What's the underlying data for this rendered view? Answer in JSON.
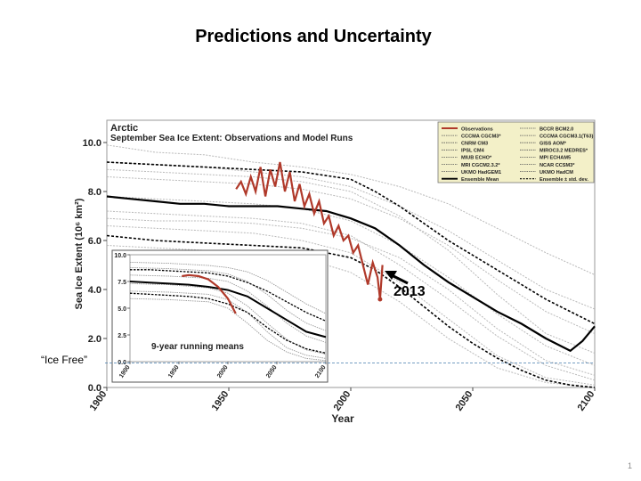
{
  "slide": {
    "title": "Predictions and Uncertainty",
    "ice_free_label": "“Ice Free”",
    "page_number": "1"
  },
  "chart_data": {
    "type": "line",
    "title": "Arctic",
    "subtitle": "September Sea Ice Extent: Observations and Model Runs",
    "xlabel": "Year",
    "ylabel": "Sea Ice Extent (10⁶ km²)",
    "xlim": [
      1900,
      2100
    ],
    "ylim": [
      0,
      10
    ],
    "x_ticks": [
      "1900",
      "1950",
      "2000",
      "2050",
      "2100"
    ],
    "y_ticks": [
      "0.0",
      "2.0",
      "4.0",
      "6.0",
      "8.0",
      "10.0"
    ],
    "legend_position": "top-right",
    "legend": [
      {
        "label": "Observations",
        "style": "observations"
      },
      {
        "label": "BCCR BCM2.0",
        "style": "model"
      },
      {
        "label": "CCCMA CGCM3*",
        "style": "model"
      },
      {
        "label": "CCCMA CGCM3.1(T63)",
        "style": "model"
      },
      {
        "label": "CNRM CM3",
        "style": "model"
      },
      {
        "label": "GISS AOM*",
        "style": "model"
      },
      {
        "label": "IPSL CM4",
        "style": "model"
      },
      {
        "label": "MIROC3.2 MEDRES*",
        "style": "model"
      },
      {
        "label": "MIUB ECHO*",
        "style": "model"
      },
      {
        "label": "MPI ECHAM5",
        "style": "model"
      },
      {
        "label": "MRI CGCM2.3.2*",
        "style": "model"
      },
      {
        "label": "NCAR CCSM3*",
        "style": "model"
      },
      {
        "label": "UKMO HadGEM1",
        "style": "model"
      },
      {
        "label": "UKMO HadCM",
        "style": "model"
      },
      {
        "label": "Ensemble Mean",
        "style": "mean"
      },
      {
        "label": "Ensemble ± std. dev.",
        "style": "std"
      }
    ],
    "annotation": "2013",
    "ice_free_level": 1.0,
    "ensemble_mean": {
      "x": [
        1900,
        1910,
        1920,
        1930,
        1940,
        1950,
        1960,
        1970,
        1980,
        1990,
        2000,
        2010,
        2020,
        2030,
        2040,
        2050,
        2060,
        2070,
        2080,
        2090,
        2095,
        2100
      ],
      "y": [
        7.8,
        7.7,
        7.6,
        7.5,
        7.5,
        7.4,
        7.4,
        7.4,
        7.3,
        7.2,
        6.9,
        6.5,
        5.8,
        5.0,
        4.3,
        3.7,
        3.1,
        2.6,
        2.0,
        1.5,
        1.9,
        2.5
      ]
    },
    "ensemble_upper": {
      "x": [
        1900,
        1920,
        1940,
        1960,
        1980,
        2000,
        2010,
        2020,
        2030,
        2040,
        2050,
        2060,
        2070,
        2080,
        2090,
        2100
      ],
      "y": [
        9.2,
        9.1,
        9.0,
        8.9,
        8.8,
        8.5,
        8.0,
        7.4,
        6.7,
        6.0,
        5.4,
        4.8,
        4.2,
        3.6,
        3.1,
        2.6
      ]
    },
    "ensemble_lower": {
      "x": [
        1900,
        1920,
        1940,
        1960,
        1980,
        2000,
        2010,
        2020,
        2030,
        2040,
        2050,
        2060,
        2070,
        2080,
        2090,
        2100
      ],
      "y": [
        6.2,
        6.0,
        5.9,
        5.8,
        5.7,
        5.3,
        4.8,
        4.1,
        3.3,
        2.5,
        1.8,
        1.2,
        0.7,
        0.3,
        0.1,
        0.0
      ]
    },
    "observations": {
      "x": [
        1953,
        1955,
        1957,
        1959,
        1961,
        1963,
        1965,
        1967,
        1969,
        1971,
        1973,
        1975,
        1977,
        1979,
        1981,
        1983,
        1985,
        1987,
        1989,
        1991,
        1993,
        1995,
        1997,
        1999,
        2001,
        2003,
        2005,
        2007,
        2009,
        2011,
        2012,
        2013
      ],
      "y": [
        8.1,
        8.4,
        7.9,
        8.6,
        8.0,
        9.0,
        7.8,
        8.9,
        8.2,
        9.2,
        8.0,
        8.8,
        7.6,
        8.3,
        7.4,
        7.9,
        7.1,
        7.6,
        6.7,
        7.0,
        6.2,
        6.6,
        6.0,
        6.2,
        5.5,
        5.8,
        5.0,
        4.2,
        5.1,
        4.5,
        3.6,
        5.0
      ]
    },
    "model_runs": [
      {
        "x": [
          1900,
          1920,
          1940,
          1960,
          1980,
          2000,
          2020,
          2040,
          2060,
          2080,
          2100
        ],
        "y": [
          9.9,
          9.6,
          9.5,
          9.2,
          9.0,
          8.7,
          8.2,
          7.5,
          6.5,
          5.5,
          4.6
        ]
      },
      {
        "x": [
          1900,
          1920,
          1940,
          1960,
          1980,
          2000,
          2020,
          2040,
          2060,
          2080,
          2100
        ],
        "y": [
          9.2,
          9.1,
          9.0,
          8.8,
          8.6,
          8.2,
          7.4,
          6.4,
          5.2,
          4.0,
          3.2
        ]
      },
      {
        "x": [
          1900,
          1920,
          1940,
          1960,
          1980,
          2000,
          2020,
          2040,
          2060,
          2080,
          2100
        ],
        "y": [
          8.6,
          8.5,
          8.4,
          8.3,
          8.1,
          7.7,
          6.9,
          5.8,
          4.4,
          3.1,
          2.2
        ]
      },
      {
        "x": [
          1900,
          1920,
          1940,
          1960,
          1980,
          2000,
          2020,
          2040,
          2060,
          2080,
          2100
        ],
        "y": [
          7.8,
          7.7,
          7.6,
          7.5,
          7.3,
          6.8,
          5.8,
          4.5,
          3.0,
          1.7,
          0.9
        ]
      },
      {
        "x": [
          1900,
          1920,
          1940,
          1960,
          1980,
          2000,
          2020,
          2040,
          2060,
          2080,
          2100
        ],
        "y": [
          7.2,
          7.1,
          7.0,
          6.9,
          6.7,
          6.2,
          5.0,
          3.6,
          2.1,
          0.9,
          0.3
        ]
      },
      {
        "x": [
          1900,
          1920,
          1940,
          1960,
          1980,
          2000,
          2020,
          2040,
          2060,
          2080,
          2100
        ],
        "y": [
          6.6,
          6.5,
          6.4,
          6.3,
          6.0,
          5.5,
          4.3,
          2.8,
          1.3,
          0.4,
          0.1
        ]
      },
      {
        "x": [
          1900,
          1920,
          1940,
          1960,
          1980,
          2000,
          2020,
          2040,
          2060,
          2080,
          2100
        ],
        "y": [
          5.8,
          5.7,
          5.6,
          5.5,
          5.3,
          4.7,
          3.5,
          2.0,
          0.8,
          0.2,
          0.0
        ]
      },
      {
        "x": [
          1900,
          1920,
          1940,
          1960,
          1980,
          2000,
          2020,
          2040,
          2060,
          2080,
          2100
        ],
        "y": [
          8.9,
          8.8,
          8.7,
          8.6,
          8.4,
          8.0,
          7.0,
          5.6,
          3.8,
          2.2,
          1.4
        ]
      },
      {
        "x": [
          1900,
          1920,
          1940,
          1960,
          1980,
          2000,
          2020,
          2040,
          2060,
          2080,
          2100
        ],
        "y": [
          6.9,
          6.8,
          6.8,
          6.7,
          6.5,
          6.1,
          5.3,
          4.0,
          2.4,
          1.1,
          0.5
        ]
      }
    ],
    "inset": {
      "title": "9-year running means",
      "xlim": [
        1900,
        2100
      ],
      "ylim": [
        0,
        10
      ],
      "x_ticks": [
        "1900",
        "1950",
        "2000",
        "2050",
        "2100"
      ],
      "y_ticks": [
        "0.0",
        "2.5",
        "5.0",
        "7.5",
        "10.0"
      ],
      "ensemble_mean": {
        "x": [
          1900,
          1920,
          1940,
          1960,
          1980,
          2000,
          2020,
          2040,
          2060,
          2080,
          2100
        ],
        "y": [
          7.5,
          7.4,
          7.3,
          7.2,
          7.0,
          6.7,
          6.1,
          5.0,
          3.9,
          2.8,
          2.3
        ]
      },
      "ensemble_upper": {
        "x": [
          1900,
          1920,
          1940,
          1960,
          1980,
          2000,
          2020,
          2040,
          2060,
          2080,
          2100
        ],
        "y": [
          8.6,
          8.6,
          8.5,
          8.4,
          8.3,
          8.0,
          7.4,
          6.6,
          5.6,
          4.6,
          3.8
        ]
      },
      "ensemble_lower": {
        "x": [
          1900,
          1920,
          1940,
          1960,
          1980,
          2000,
          2020,
          2040,
          2060,
          2080,
          2100
        ],
        "y": [
          6.4,
          6.3,
          6.2,
          6.1,
          5.9,
          5.4,
          4.6,
          3.2,
          2.0,
          1.2,
          0.8
        ]
      },
      "observations": {
        "x": [
          1953,
          1960,
          1970,
          1980,
          1990,
          2000,
          2008
        ],
        "y": [
          8.0,
          8.1,
          8.0,
          7.7,
          7.0,
          5.9,
          4.5
        ]
      },
      "model_runs": [
        {
          "x": [
            1900,
            1940,
            1980,
            2000,
            2020,
            2040,
            2060,
            2080,
            2100
          ],
          "y": [
            9.3,
            9.2,
            9.0,
            8.8,
            8.4,
            7.6,
            6.5,
            5.4,
            4.5
          ]
        },
        {
          "x": [
            1900,
            1940,
            1980,
            2000,
            2020,
            2040,
            2060,
            2080,
            2100
          ],
          "y": [
            8.8,
            8.7,
            8.5,
            8.2,
            7.5,
            6.3,
            4.8,
            3.6,
            2.9
          ]
        },
        {
          "x": [
            1900,
            1940,
            1980,
            2000,
            2020,
            2040,
            2060,
            2080,
            2100
          ],
          "y": [
            8.1,
            8.0,
            7.8,
            7.5,
            6.6,
            5.2,
            3.6,
            2.4,
            1.8
          ]
        },
        {
          "x": [
            1900,
            1940,
            1980,
            2000,
            2020,
            2040,
            2060,
            2080,
            2100
          ],
          "y": [
            7.3,
            7.2,
            6.9,
            6.4,
            5.2,
            3.6,
            2.1,
            1.1,
            0.7
          ]
        },
        {
          "x": [
            1900,
            1940,
            1980,
            2000,
            2020,
            2040,
            2060,
            2080,
            2100
          ],
          "y": [
            6.6,
            6.5,
            6.3,
            5.8,
            4.6,
            2.8,
            1.3,
            0.6,
            0.3
          ]
        },
        {
          "x": [
            1900,
            1940,
            1980,
            2000,
            2020,
            2040,
            2060,
            2080,
            2100
          ],
          "y": [
            5.9,
            5.8,
            5.6,
            5.0,
            3.6,
            2.0,
            0.9,
            0.3,
            0.1
          ]
        }
      ]
    },
    "colors": {
      "observations": "#b0392a",
      "ensemble_mean": "#000000",
      "ensemble_std": "#000000",
      "model_runs": "#b9b9b9",
      "legend_background": "#f3f0c8",
      "ice_free_line": "#4a7fb0"
    }
  }
}
